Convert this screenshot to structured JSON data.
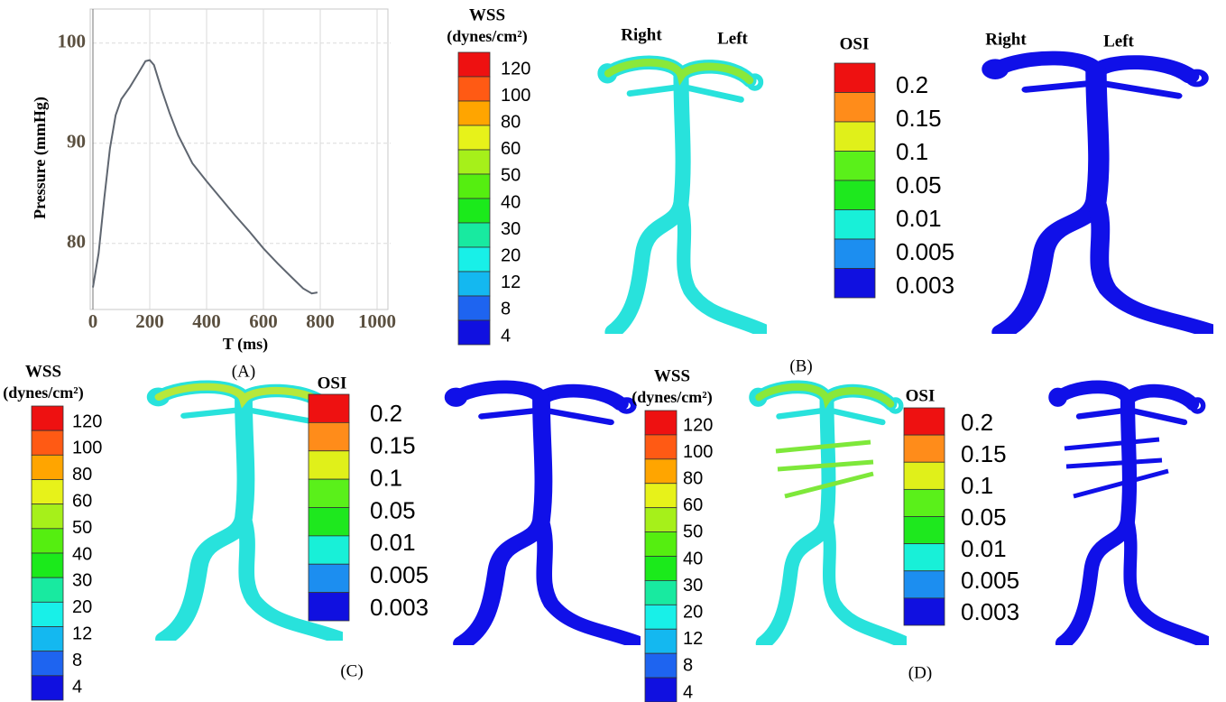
{
  "chart_data": {
    "type": "line",
    "ylabel": "Pressure (mmHg)",
    "xlabel": "T (ms)",
    "x": [
      0,
      20,
      40,
      60,
      80,
      100,
      130,
      160,
      185,
      200,
      215,
      240,
      270,
      300,
      350,
      400,
      450,
      500,
      550,
      600,
      650,
      700,
      740,
      770,
      790
    ],
    "values": [
      75.6,
      79,
      84.5,
      89.5,
      92.8,
      94.4,
      95.6,
      97,
      98.2,
      98.3,
      97.8,
      95.5,
      93,
      90.8,
      88,
      86.2,
      84.5,
      82.8,
      81.2,
      79.5,
      78,
      76.6,
      75.5,
      75,
      75.1
    ],
    "color": "#5f6670",
    "xlim": [
      0,
      1000
    ],
    "ylim": [
      73.4,
      103.4
    ],
    "xticks": [
      0,
      200,
      400,
      600,
      800,
      1000
    ],
    "yticks": [
      80,
      90,
      100
    ],
    "grid": true
  },
  "panels": [
    "(A)",
    "(B)",
    "(C)",
    "(D)"
  ],
  "side_labels": [
    "Right",
    "Left",
    "Right",
    "Left"
  ],
  "colorbars": [
    {
      "title": "WSS",
      "unit": "(dynes/cm²)",
      "labels": [
        120,
        100,
        80,
        60,
        50,
        40,
        30,
        20,
        12,
        8,
        4
      ],
      "colors": [
        "#ee1111",
        "#ff5a14",
        "#ffa500",
        "#e7f21a",
        "#a6f01a",
        "#55ee10",
        "#1bea1b",
        "#18eaa0",
        "#18f0e8",
        "#14b8f0",
        "#1e64f0",
        "#1010e0"
      ]
    },
    {
      "title": "OSI",
      "labels": [
        0.2,
        0.15,
        0.1,
        0.05,
        0.01,
        0.005,
        0.003
      ],
      "colors": [
        "#ee1111",
        "#ff8c1a",
        "#e0f01a",
        "#5af01a",
        "#1ee81e",
        "#18f0d8",
        "#1c8ef0",
        "#1010e0"
      ]
    },
    {
      "title": "WSS",
      "unit": "(dynes/cm²)",
      "labels": [
        120,
        100,
        80,
        60,
        50,
        40,
        30,
        20,
        12,
        8,
        4
      ],
      "colors": [
        "#ee1111",
        "#ff5a14",
        "#ffa500",
        "#e7f21a",
        "#a6f01a",
        "#55ee10",
        "#1bea1b",
        "#18eaa0",
        "#18f0e8",
        "#14b8f0",
        "#1e64f0",
        "#1010e0"
      ]
    },
    {
      "title": "OSI",
      "labels": [
        0.2,
        0.15,
        0.1,
        0.05,
        0.01,
        0.005,
        0.003
      ],
      "colors": [
        "#ee1111",
        "#ff8c1a",
        "#e0f01a",
        "#5af01a",
        "#1ee81e",
        "#18f0d8",
        "#1c8ef0",
        "#1010e0"
      ]
    },
    {
      "title": "WSS",
      "unit": "(dynes/cm²)",
      "labels": [
        120,
        100,
        80,
        60,
        50,
        40,
        30,
        20,
        12,
        8,
        4
      ],
      "colors": [
        "#ee1111",
        "#ff5a14",
        "#ffa500",
        "#e7f21a",
        "#a6f01a",
        "#55ee10",
        "#1bea1b",
        "#18eaa0",
        "#18f0e8",
        "#14b8f0",
        "#1e64f0",
        "#1010e0"
      ]
    },
    {
      "title": "OSI",
      "labels": [
        0.2,
        0.15,
        0.1,
        0.05,
        0.01,
        0.005,
        0.003
      ],
      "colors": [
        "#ee1111",
        "#ff8c1a",
        "#e0f01a",
        "#5af01a",
        "#1ee81e",
        "#18f0d8",
        "#1c8ef0",
        "#1010e0"
      ]
    }
  ]
}
